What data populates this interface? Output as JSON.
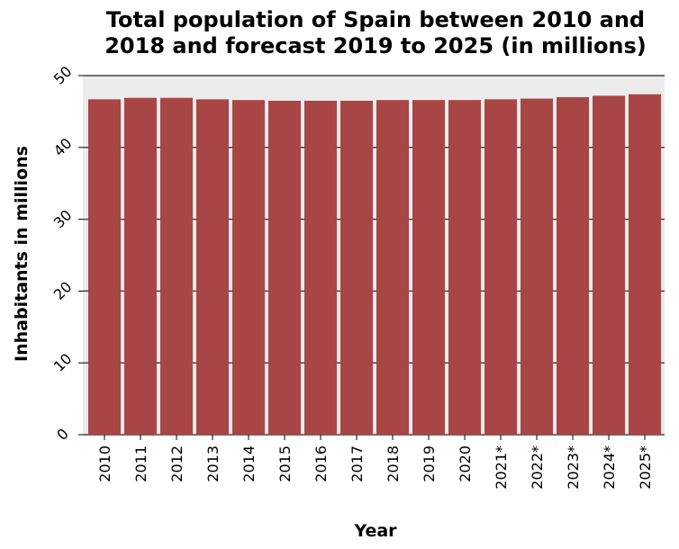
{
  "chart_data": {
    "type": "bar",
    "title_lines": [
      "Total population of Spain between 2010 and",
      "2018 and forecast 2019 to 2025 (in millions)"
    ],
    "xlabel": "Year",
    "ylabel": "Inhabitants in millions",
    "categories": [
      "2010",
      "2011",
      "2012",
      "2013",
      "2014",
      "2015",
      "2016",
      "2017",
      "2018",
      "2019",
      "2020",
      "2021*",
      "2022*",
      "2023*",
      "2024*",
      "2025*"
    ],
    "values": [
      46.7,
      46.9,
      46.9,
      46.7,
      46.6,
      46.5,
      46.5,
      46.5,
      46.6,
      46.6,
      46.6,
      46.7,
      46.8,
      47.0,
      47.2,
      47.4
    ],
    "ylim": [
      0,
      50
    ],
    "yticks": [
      0,
      10,
      20,
      30,
      40,
      50
    ],
    "grid": true,
    "legend": "none",
    "colors": {
      "bar": "#a84646",
      "plot_bg": "#ececec",
      "grid": "#444444"
    }
  }
}
